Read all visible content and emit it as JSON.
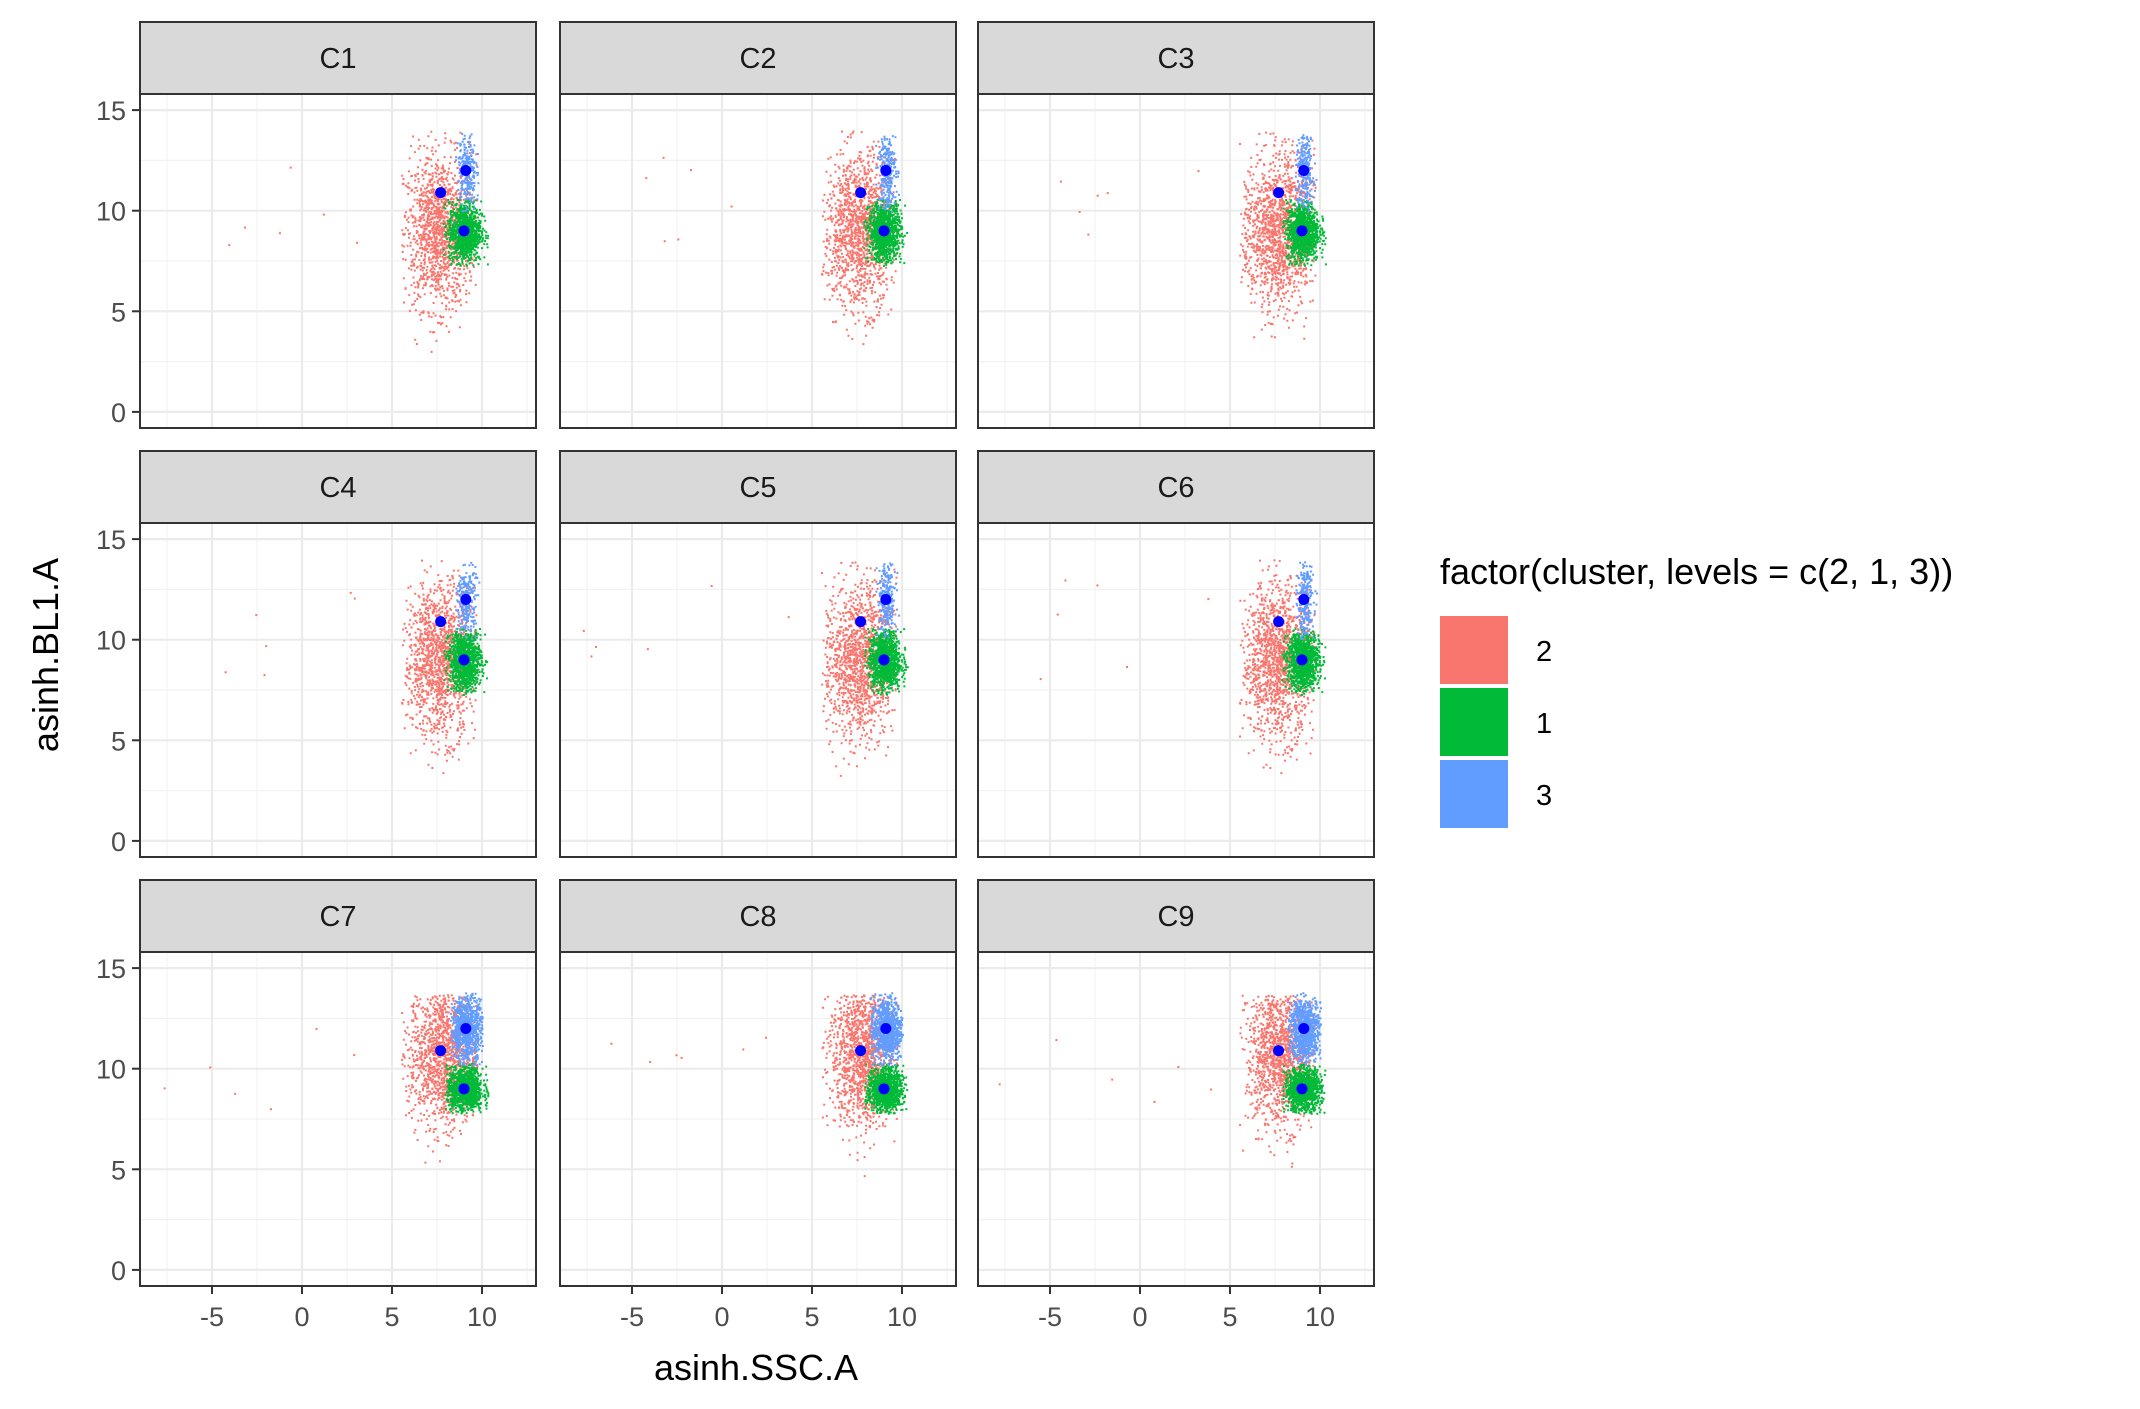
{
  "chart_data": {
    "type": "scatter",
    "facets": [
      "C1",
      "C2",
      "C3",
      "C4",
      "C5",
      "C6",
      "C7",
      "C8",
      "C9"
    ],
    "xlabel": "asinh.SSC.A",
    "ylabel": "asinh.BL1.A",
    "xlim": [
      -9,
      13
    ],
    "ylim": [
      -0.8,
      15.8
    ],
    "x_ticks": [
      -5,
      0,
      5,
      10
    ],
    "x_tick_labels": [
      "-5",
      "0",
      "5",
      "10"
    ],
    "y_ticks": [
      0,
      5,
      10,
      15
    ],
    "y_tick_labels": [
      "0",
      "5",
      "10",
      "15"
    ],
    "grid": true,
    "theme": "bw",
    "legend": {
      "title": "factor(cluster, levels = c(2, 1, 3))",
      "position": "right",
      "entries": [
        {
          "label": "2",
          "color": "#F8766D"
        },
        {
          "label": "1",
          "color": "#00BA38"
        },
        {
          "label": "3",
          "color": "#619CFF"
        }
      ]
    },
    "cluster_clouds": {
      "C1-C6": [
        {
          "cluster": "2",
          "color": "#F8766D",
          "center": [
            7.6,
            9.0
          ],
          "spread": [
            1.0,
            1.9
          ],
          "extent_x": [
            5.5,
            9.7
          ],
          "extent_y": [
            3.0,
            14.0
          ]
        },
        {
          "cluster": "1",
          "color": "#00BA38",
          "center": [
            9.0,
            9.0
          ],
          "spread": [
            0.45,
            0.75
          ],
          "extent_x": [
            7.8,
            10.3
          ],
          "extent_y": [
            7.3,
            10.6
          ]
        },
        {
          "cluster": "3",
          "color": "#619CFF",
          "center": [
            9.1,
            12.0
          ],
          "spread": [
            0.25,
            1.0
          ],
          "extent_x": [
            8.5,
            9.8
          ],
          "extent_y": [
            10.0,
            13.9
          ]
        }
      ],
      "C7-C9": [
        {
          "cluster": "2",
          "color": "#F8766D",
          "center": [
            7.8,
            10.8
          ],
          "spread": [
            0.95,
            1.8
          ],
          "extent_x": [
            5.5,
            9.7
          ],
          "extent_y": [
            2.0,
            13.7
          ]
        },
        {
          "cluster": "1",
          "color": "#00BA38",
          "center": [
            9.0,
            9.0
          ],
          "spread": [
            0.5,
            0.55
          ],
          "extent_x": [
            7.9,
            10.3
          ],
          "extent_y": [
            7.8,
            10.3
          ]
        },
        {
          "cluster": "3",
          "color": "#619CFF",
          "center": [
            9.1,
            12.0
          ],
          "spread": [
            0.45,
            0.8
          ],
          "extent_x": [
            8.2,
            10.0
          ],
          "extent_y": [
            10.2,
            13.8
          ]
        }
      ]
    },
    "centroids": {
      "color": "#0000FF",
      "points": [
        {
          "cluster": "2",
          "x": 7.7,
          "y": 10.9
        },
        {
          "cluster": "1",
          "x": 9.0,
          "y": 9.0
        },
        {
          "cluster": "3",
          "x": 9.1,
          "y": 12.0
        }
      ]
    }
  }
}
